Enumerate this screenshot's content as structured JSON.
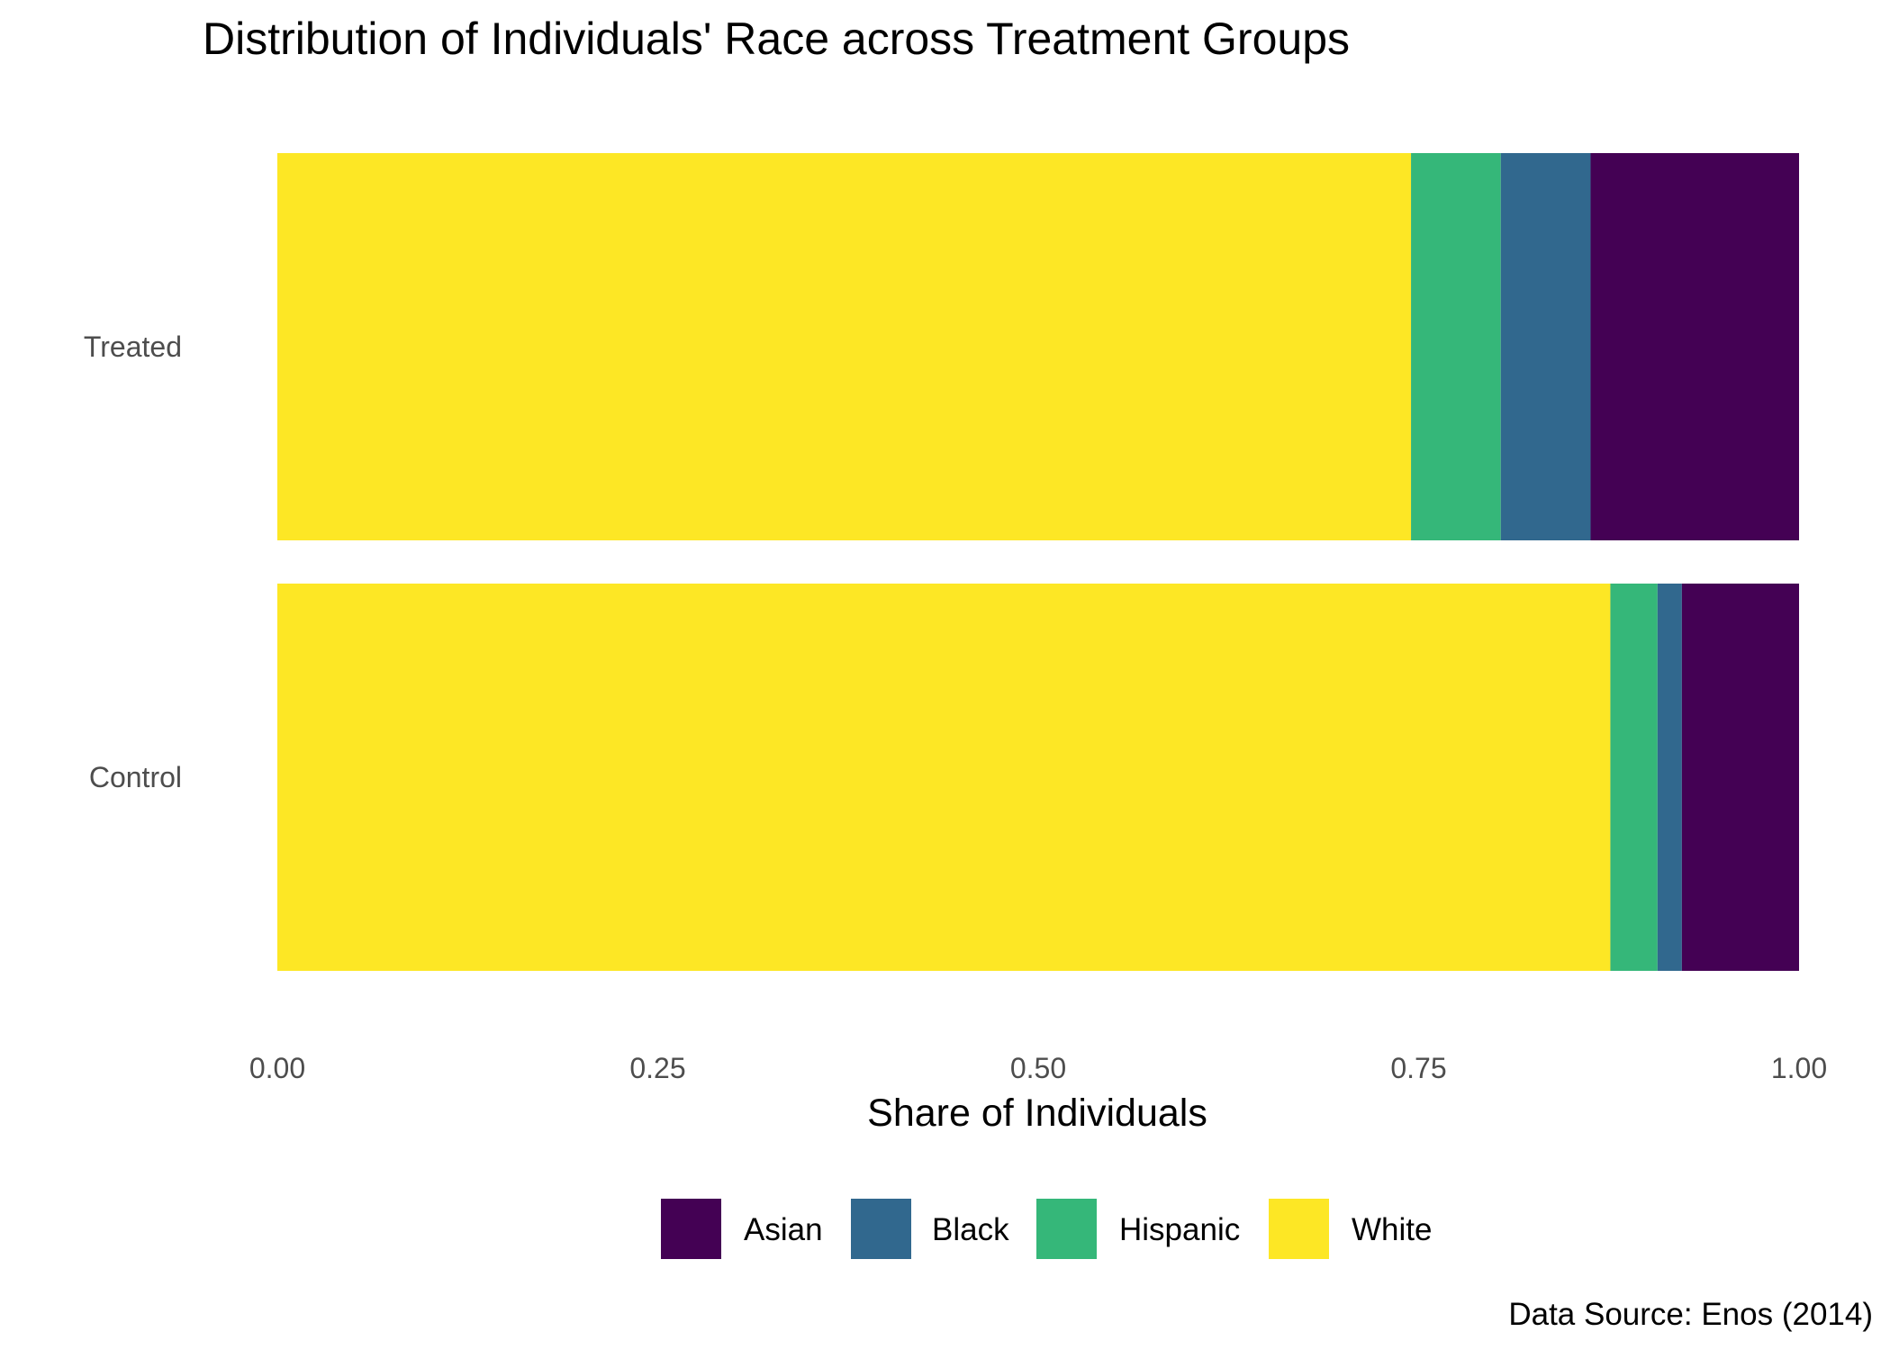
{
  "chart_data": {
    "type": "bar",
    "orientation": "horizontal",
    "stacked": "fill",
    "title": "Distribution of Individuals' Race across Treatment Groups",
    "xlabel": "Share of Individuals",
    "ylabel": "",
    "xlim": [
      0,
      1
    ],
    "x_ticks": [
      "0.00",
      "0.25",
      "0.50",
      "0.75",
      "1.00"
    ],
    "categories": [
      "Treated",
      "Control"
    ],
    "stack_order": [
      "White",
      "Hispanic",
      "Black",
      "Asian"
    ],
    "series": [
      {
        "name": "Asian",
        "color": "#440154",
        "values": [
          0.137,
          0.077
        ]
      },
      {
        "name": "Black",
        "color": "#31688E",
        "values": [
          0.059,
          0.016
        ]
      },
      {
        "name": "Hispanic",
        "color": "#35B779",
        "values": [
          0.059,
          0.031
        ]
      },
      {
        "name": "White",
        "color": "#FDE725",
        "values": [
          0.745,
          0.876
        ]
      }
    ],
    "legend": {
      "position": "bottom",
      "order": [
        "Asian",
        "Black",
        "Hispanic",
        "White"
      ]
    },
    "grid": false,
    "caption": "Data Source: Enos (2014)"
  }
}
